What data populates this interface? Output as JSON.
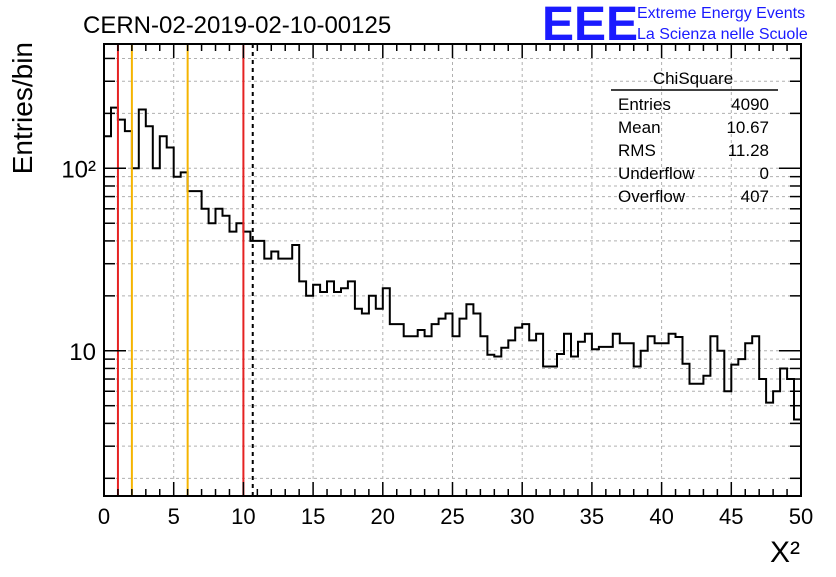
{
  "header": {
    "run_title": "CERN-02-2019-02-10-00125",
    "logo_text": "EEE",
    "project_line1": "Extreme Energy Events",
    "project_line2": "La Scienza nelle Scuole",
    "brand_color": "#1a1aff"
  },
  "stats_box": {
    "title": "ChiSquare",
    "rows": [
      {
        "label": "Entries",
        "value": "4090"
      },
      {
        "label": "Mean",
        "value": "10.67"
      },
      {
        "label": "RMS",
        "value": "11.28"
      },
      {
        "label": "Underflow",
        "value": "0"
      },
      {
        "label": "Overflow",
        "value": "407"
      }
    ]
  },
  "chart_data": {
    "type": "histogram",
    "title": "CERN-02-2019-02-10-00125",
    "xlabel": "X²",
    "ylabel": "Entries/bin",
    "xlim": [
      0,
      50
    ],
    "ylim": [
      1.6,
      480
    ],
    "yscale": "log",
    "grid": true,
    "x_ticks": [
      0,
      5,
      10,
      15,
      20,
      25,
      30,
      35,
      40,
      45,
      50
    ],
    "x_tick_labels": [
      "0",
      "5",
      "10",
      "15",
      "20",
      "25",
      "30",
      "35",
      "40",
      "45",
      "50"
    ],
    "y_tick_labels": [
      {
        "value": 10,
        "label": "10"
      },
      {
        "value": 100,
        "label": "10²"
      }
    ],
    "bin_width": 0.5,
    "bin_edges_start": 0,
    "counts": [
      150,
      215,
      185,
      160,
      100,
      210,
      170,
      100,
      150,
      130,
      90,
      95,
      75,
      75,
      60,
      50,
      60,
      55,
      45,
      50,
      45,
      40,
      40,
      32,
      35,
      32,
      32,
      38,
      24,
      20,
      23,
      21,
      24,
      21,
      22,
      24,
      17,
      16,
      20,
      17,
      22,
      14,
      14,
      12,
      12,
      13,
      12,
      14,
      15,
      16,
      12,
      15,
      18,
      16,
      12,
      9.5,
      9.3,
      10.4,
      11.4,
      13.4,
      14,
      11.4,
      12.4,
      8.2,
      8.2,
      9.6,
      12.4,
      9.3,
      11.2,
      12.4,
      10.2,
      10.5,
      10.5,
      12.4,
      11,
      11,
      8.2,
      10,
      12,
      11,
      11,
      12.4,
      11.9,
      8.5,
      6.6,
      6.6,
      7.3,
      12,
      10,
      6,
      8.4,
      9,
      11,
      12,
      7,
      5.2,
      6,
      8,
      7,
      4.2
    ],
    "overlay_lines": [
      {
        "x": 1,
        "color": "#e52222",
        "style": "solid"
      },
      {
        "x": 2,
        "color": "#f5b400",
        "style": "solid"
      },
      {
        "x": 6,
        "color": "#f5b400",
        "style": "solid"
      },
      {
        "x": 10,
        "color": "#e52222",
        "style": "solid"
      },
      {
        "x": 10.67,
        "color": "#000000",
        "style": "dashed"
      }
    ]
  }
}
